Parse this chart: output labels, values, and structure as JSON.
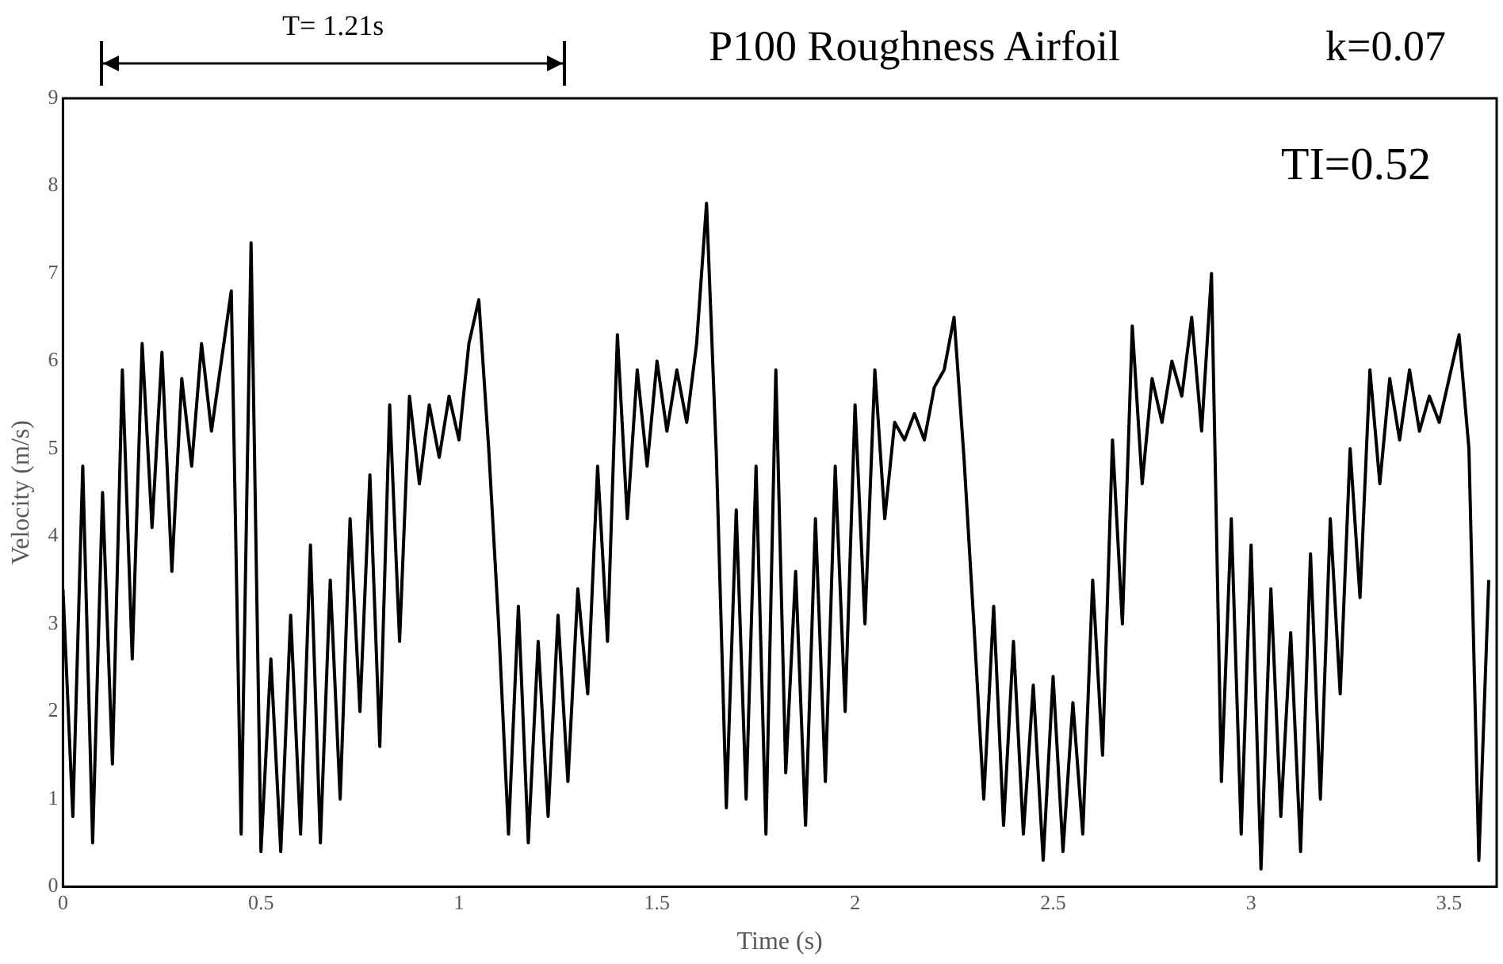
{
  "chart_data": {
    "type": "line",
    "title": "P100 Roughness Airfoil",
    "xlabel": "Time (s)",
    "ylabel": "Velocity (m/s)",
    "annotations": [
      "k=0.07",
      "TI=0.52",
      "T= 1.21s"
    ],
    "x": [
      0,
      0.025,
      0.05,
      0.075,
      0.1,
      0.125,
      0.15,
      0.175,
      0.2,
      0.225,
      0.25,
      0.275,
      0.3,
      0.325,
      0.35,
      0.375,
      0.4,
      0.425,
      0.45,
      0.475,
      0.5,
      0.525,
      0.55,
      0.575,
      0.6,
      0.625,
      0.65,
      0.675,
      0.7,
      0.725,
      0.75,
      0.775,
      0.8,
      0.825,
      0.85,
      0.875,
      0.9,
      0.925,
      0.95,
      0.975,
      1,
      1.025,
      1.05,
      1.075,
      1.1,
      1.125,
      1.15,
      1.175,
      1.2,
      1.225,
      1.25,
      1.275,
      1.3,
      1.325,
      1.35,
      1.375,
      1.4,
      1.425,
      1.45,
      1.475,
      1.5,
      1.525,
      1.55,
      1.575,
      1.6,
      1.625,
      1.65,
      1.675,
      1.7,
      1.725,
      1.75,
      1.775,
      1.8,
      1.825,
      1.85,
      1.875,
      1.9,
      1.925,
      1.95,
      1.975,
      2,
      2.025,
      2.05,
      2.075,
      2.1,
      2.125,
      2.15,
      2.175,
      2.2,
      2.225,
      2.25,
      2.275,
      2.3,
      2.325,
      2.35,
      2.375,
      2.4,
      2.425,
      2.45,
      2.475,
      2.5,
      2.525,
      2.55,
      2.575,
      2.6,
      2.625,
      2.65,
      2.675,
      2.7,
      2.725,
      2.75,
      2.775,
      2.8,
      2.825,
      2.85,
      2.875,
      2.9,
      2.925,
      2.95,
      2.975,
      3,
      3.025,
      3.05,
      3.075,
      3.1,
      3.125,
      3.15,
      3.175,
      3.2,
      3.225,
      3.25,
      3.275,
      3.3,
      3.325,
      3.35,
      3.375,
      3.4,
      3.425,
      3.45,
      3.475,
      3.5,
      3.525,
      3.55,
      3.575,
      3.6
    ],
    "series": [
      {
        "color": "#000000",
        "values": [
          3.4,
          0.8,
          4.8,
          0.5,
          4.5,
          1.4,
          5.9,
          2.6,
          6.2,
          4.1,
          6.1,
          3.6,
          5.8,
          4.8,
          6.2,
          5.2,
          6.0,
          6.8,
          0.6,
          7.35,
          0.4,
          2.6,
          0.4,
          3.1,
          0.6,
          3.9,
          0.5,
          3.5,
          1.0,
          4.2,
          2.0,
          4.7,
          1.6,
          5.5,
          2.8,
          5.6,
          4.6,
          5.5,
          4.9,
          5.6,
          5.1,
          6.2,
          6.7,
          5.0,
          3.0,
          0.6,
          3.2,
          0.5,
          2.8,
          0.8,
          3.1,
          1.2,
          3.4,
          2.2,
          4.8,
          2.8,
          6.3,
          4.2,
          5.9,
          4.8,
          6.0,
          5.2,
          5.9,
          5.3,
          6.2,
          7.8,
          4.9,
          0.9,
          4.3,
          1.0,
          4.8,
          0.6,
          5.9,
          1.3,
          3.6,
          0.7,
          4.2,
          1.2,
          4.8,
          2.0,
          5.5,
          3.0,
          5.9,
          4.2,
          5.3,
          5.1,
          5.4,
          5.1,
          5.7,
          5.9,
          6.5,
          4.9,
          3.0,
          1.0,
          3.2,
          0.7,
          2.8,
          0.6,
          2.3,
          0.3,
          2.4,
          0.4,
          2.1,
          0.6,
          3.5,
          1.5,
          5.1,
          3.0,
          6.4,
          4.6,
          5.8,
          5.3,
          6.0,
          5.6,
          6.5,
          5.2,
          7.0,
          1.2,
          4.2,
          0.6,
          3.9,
          0.2,
          3.4,
          0.8,
          2.9,
          0.4,
          3.8,
          1.0,
          4.2,
          2.2,
          5.0,
          3.3,
          5.9,
          4.6,
          5.8,
          5.1,
          5.9,
          5.2,
          5.6,
          5.3,
          5.8,
          6.3,
          5.0,
          0.3,
          3.5
        ]
      }
    ],
    "xlim": [
      0,
      3.62
    ],
    "xticks": [
      0,
      0.5,
      1,
      1.5,
      2,
      2.5,
      3,
      3.5
    ],
    "ylim": [
      0,
      9
    ],
    "yticks": [
      0,
      1,
      2,
      3,
      4,
      5,
      6,
      7,
      8,
      9
    ],
    "grid": false,
    "legend": false,
    "marker": "none",
    "line_style": "solid"
  }
}
